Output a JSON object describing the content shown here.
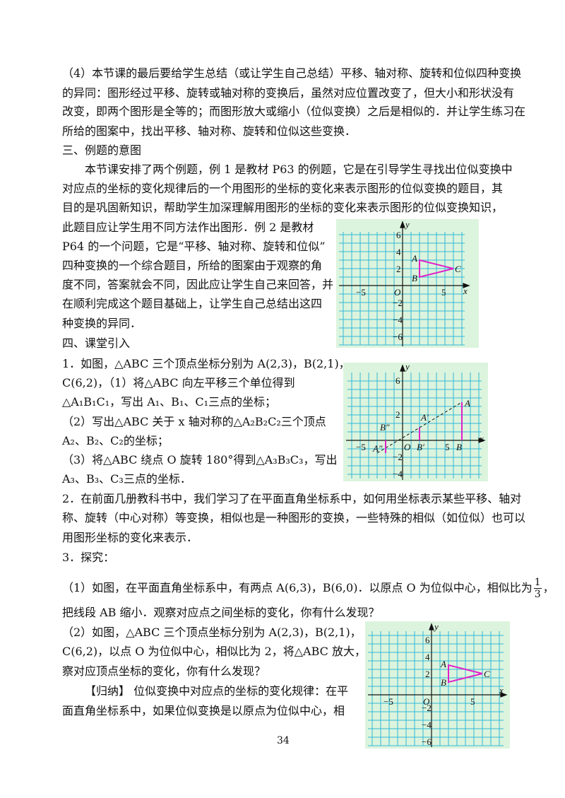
{
  "para4": {
    "l1": "（4）本节课的最后要给学生总结（或让学生自己总结）平移、轴对称、旋转和位似四种变换",
    "l2": "的异同：图形经过平移、旋转或轴对称的变换后，虽然对应位置改变了，但大小和形状没有",
    "l3": "改变，即两个图形是全等的；而图形放大或缩小（位似变换）之后是相似的．并让学生练习在",
    "l4": "所给的图案中，找出平移、轴对称、旋转和位似这些变换．"
  },
  "sec3": {
    "heading": "三、例题的意图",
    "l1": "本节课安排了两个例题，例 1 是教材 P63 的例题，它是在引导学生寻找出位似变换中",
    "l2": "对应点的坐标的变化规律后的一个用图形的坐标的变化来表示图形的位似变换的题目，其",
    "l3": "目的是巩固新知识，帮助学生加深理解用图形的坐标的变化来表示图形的位似变换知识，",
    "l4": "此题目应让学生用不同方法作出图形．例 2 是教材",
    "l5": "P64 的一个问题，它是“平移、轴对称、旋转和位似”",
    "l6": "四种变换的一个综合题目，所给的图案由于观察的角",
    "l7": "度不同，答案就会不同，因此应让学生自己来回答，并",
    "l8": "在顺利完成这个题目基础上，让学生自己总结出这四",
    "l9": "种变换的异同．"
  },
  "sec4": {
    "heading": "四、课堂引入",
    "q1a": "1．如图，△ABC 三个顶点坐标分别为 A(2,3)，B(2,1)，",
    "q1b": "C(6,2)，（1）将△ABC 向左平移三个单位得到",
    "q1c_pre": "△A",
    "q1c_mid": "，写出 A",
    "q1c_end": "三点的坐标；",
    "q1d": "（2）写出△ABC 关于 x 轴对称的△A",
    "q1d_end": "三个顶点",
    "q1e": "的坐标；",
    "q1f": "（3）将△ABC 绕点 O 旋转 180°得到△A",
    "q1f_end": "，写出",
    "q1g_end": "三点的坐标．",
    "q2a": "2．在前面几册教科书中，我们学习了在平面直角坐标系中，如何用坐标表示某些平移、轴对",
    "q2b": "称、旋转（中心对称）等变换，相似也是一种图形的变换，一些特殊的相似（如位似）也可以",
    "q2c": "用图形坐标的变化来表示．",
    "q3": "3．探究：",
    "q3a": "（1）如图，在平面直角坐标系中，有两点 A(6,3)，B(6,0)．以原点 O 为位似中心，相似比为",
    "q3a_num": "1",
    "q3a_den": "3",
    "q3a_end": "，",
    "q3b": "把线段 AB 缩小．观察对应点之间坐标的变化，你有什么发现？",
    "q3c": "（2）如图，△ABC 三个顶点坐标分别为 A(2,3)，B(2,1)，",
    "q3d": "C(6,2)，以点 O 为位似中心，相似比为 2，将△ABC 放大，观",
    "q3e": "察对应顶点坐标的变化，你有什么发现？",
    "q3f": "【归纳】 位似变换中对应点的坐标的变化规律：在平",
    "q3g": "面直角坐标系中，如果位似变换是以原点为位似中心，相"
  },
  "fig": {
    "x": "x",
    "y": "y",
    "o": "O",
    "tick5": "5",
    "tickm5": "−5",
    "y6": "6",
    "y4": "4",
    "y2": "2",
    "ym2": "−2",
    "ym4": "−4",
    "ym6": "−6",
    "A": "A",
    "B": "B",
    "C": "C",
    "A1": "A′",
    "B1": "B′",
    "A2": "A″",
    "B2": "B″"
  },
  "page_number": "34"
}
